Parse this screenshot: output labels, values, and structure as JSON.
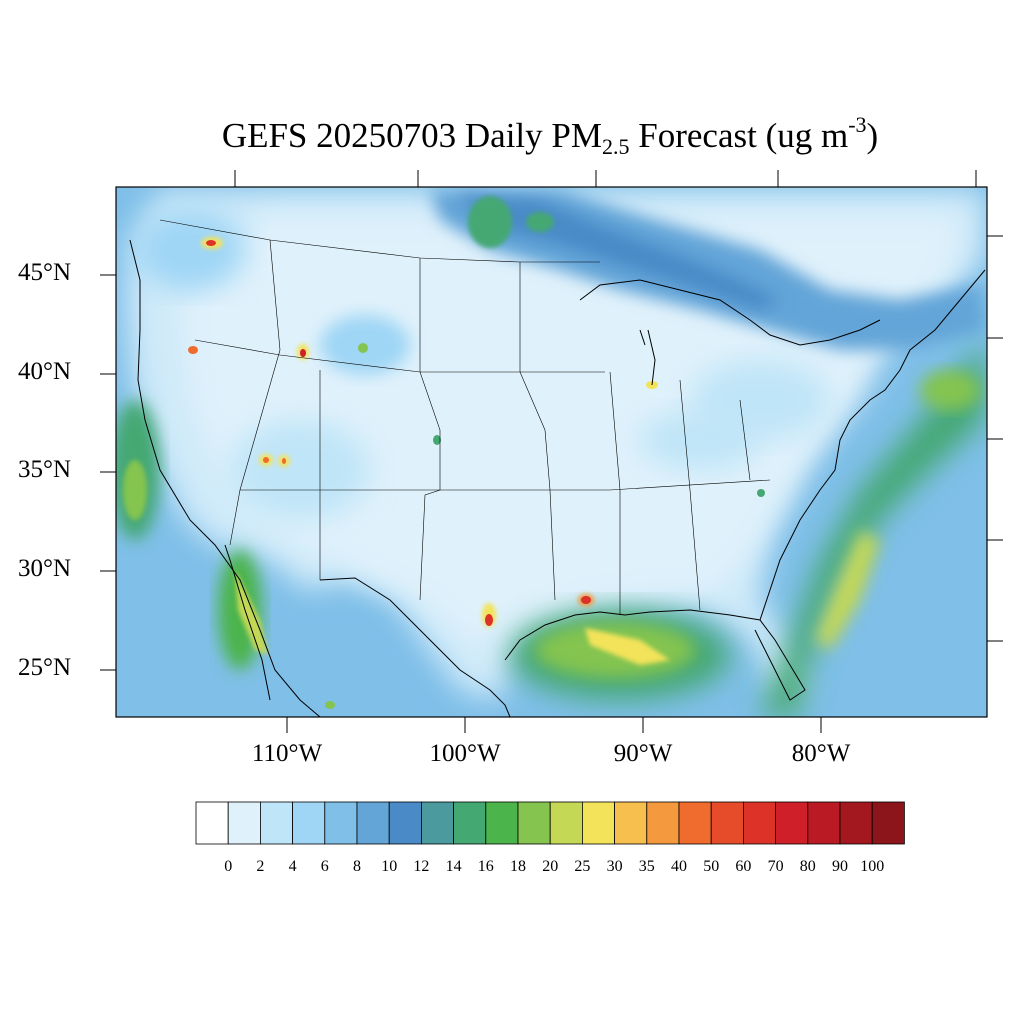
{
  "title": {
    "prefix": "GEFS 20250703 Daily PM",
    "subscript": "2.5",
    "middle": " Forecast (ug m",
    "superscript": "-3",
    "suffix": ")"
  },
  "map": {
    "lat_labels": [
      "45°N",
      "40°N",
      "35°N",
      "30°N",
      "25°N"
    ],
    "lon_labels": [
      "110°W",
      "100°W",
      "90°W",
      "80°W"
    ],
    "plume_levels": {
      "background": "2-6",
      "ocean": "8-12",
      "smoke_band_canada": "12-18",
      "gulf_plume": "18-30",
      "atlantic_plume": "18-30",
      "fire_hotspots": "50-90"
    }
  },
  "colorbar": {
    "levels": [
      "0",
      "2",
      "4",
      "6",
      "8",
      "10",
      "12",
      "14",
      "16",
      "18",
      "20",
      "25",
      "30",
      "35",
      "40",
      "50",
      "60",
      "70",
      "80",
      "90",
      "100"
    ],
    "colors": [
      "#ffffff",
      "#dff1fb",
      "#bfe5f8",
      "#9fd6f5",
      "#7fbfe8",
      "#64a5d8",
      "#4a8ac7",
      "#4a9a9e",
      "#44a873",
      "#4bb44b",
      "#84c44f",
      "#c4d856",
      "#f3e35a",
      "#f7bf4d",
      "#f4993e",
      "#ef6b2e",
      "#e64c2a",
      "#dc3228",
      "#cf1f28",
      "#b91a24",
      "#a3181f",
      "#8c151b"
    ]
  }
}
